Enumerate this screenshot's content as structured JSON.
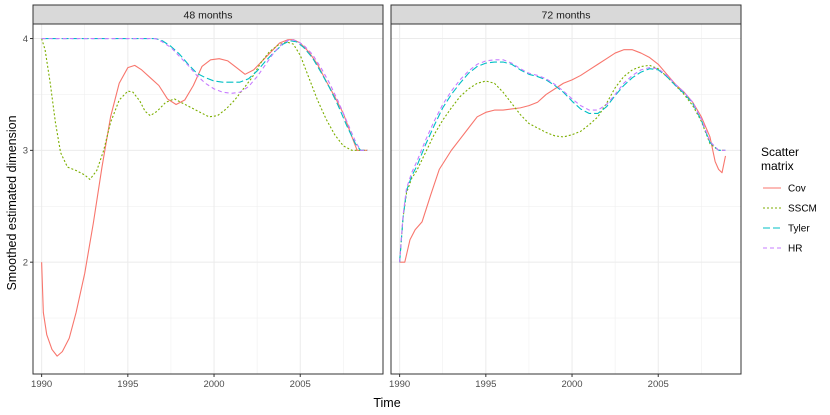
{
  "chart_data": {
    "type": "line",
    "xlabel": "Time",
    "ylabel": "Smoothed estimated dimension",
    "xticks": [
      1990,
      1995,
      2000,
      2005
    ],
    "yticks": [
      2,
      3,
      4
    ],
    "xlim": [
      1989.5,
      2009.8
    ],
    "ylim": [
      1.0,
      4.13
    ],
    "grid": true,
    "legend": {
      "title_lines": [
        "Scatter",
        "matrix"
      ],
      "position": "right"
    },
    "series_styles": [
      {
        "name": "Cov",
        "color": "#F8766D",
        "dash": ""
      },
      {
        "name": "SSCM",
        "color": "#7CAE00",
        "dash": "2,2"
      },
      {
        "name": "Tyler",
        "color": "#00BFC4",
        "dash": "7,3"
      },
      {
        "name": "HR",
        "color": "#C77CFF",
        "dash": "4,3"
      }
    ],
    "panels": [
      {
        "strip": "48 months",
        "series": [
          {
            "name": "Cov",
            "x": [
              1990.0,
              1990.1,
              1990.3,
              1990.6,
              1990.9,
              1991.2,
              1991.6,
              1992.0,
              1992.5,
              1993.0,
              1993.5,
              1994.0,
              1994.5,
              1995.0,
              1995.4,
              1995.8,
              1996.3,
              1996.8,
              1997.3,
              1997.8,
              1998.3,
              1998.8,
              1999.3,
              1999.8,
              2000.3,
              2000.8,
              2001.3,
              2001.8,
              2002.3,
              2002.8,
              2003.3,
              2003.8,
              2004.3,
              2004.6,
              2005.0,
              2005.5,
              2006.0,
              2006.5,
              2007.0,
              2007.5,
              2008.0,
              2008.3,
              2008.5,
              2008.9
            ],
            "y": [
              2.0,
              1.55,
              1.35,
              1.22,
              1.16,
              1.2,
              1.32,
              1.55,
              1.9,
              2.35,
              2.85,
              3.3,
              3.6,
              3.74,
              3.76,
              3.72,
              3.65,
              3.58,
              3.46,
              3.41,
              3.45,
              3.58,
              3.75,
              3.81,
              3.82,
              3.8,
              3.74,
              3.68,
              3.72,
              3.8,
              3.88,
              3.96,
              3.99,
              3.99,
              3.96,
              3.88,
              3.77,
              3.62,
              3.48,
              3.33,
              3.12,
              3.0,
              3.0,
              3.0
            ]
          },
          {
            "name": "SSCM",
            "x": [
              1990.0,
              1990.2,
              1990.5,
              1990.8,
              1991.1,
              1991.5,
              1992.0,
              1992.5,
              1992.8,
              1993.2,
              1993.6,
              1994.0,
              1994.5,
              1995.0,
              1995.3,
              1995.7,
              1996.0,
              1996.3,
              1996.7,
              1997.2,
              1997.7,
              1998.2,
              1998.7,
              1999.2,
              1999.7,
              2000.2,
              2000.7,
              2001.2,
              2001.7,
              2002.2,
              2002.7,
              2003.2,
              2003.7,
              2004.2,
              2004.6,
              2005.0,
              2005.5,
              2006.0,
              2006.5,
              2007.0,
              2007.5,
              2008.0,
              2008.3,
              2008.9
            ],
            "y": [
              4.0,
              3.9,
              3.6,
              3.25,
              2.98,
              2.85,
              2.82,
              2.78,
              2.74,
              2.82,
              3.0,
              3.25,
              3.45,
              3.53,
              3.52,
              3.44,
              3.35,
              3.31,
              3.35,
              3.43,
              3.46,
              3.42,
              3.38,
              3.34,
              3.3,
              3.31,
              3.37,
              3.45,
              3.55,
              3.65,
              3.78,
              3.88,
              3.94,
              3.97,
              3.95,
              3.85,
              3.65,
              3.45,
              3.28,
              3.14,
              3.04,
              3.0,
              3.0,
              3.0
            ]
          },
          {
            "name": "Tyler",
            "x": [
              1990.0,
              1991.0,
              1992.0,
              1993.0,
              1994.0,
              1995.0,
              1996.0,
              1996.6,
              1997.0,
              1997.5,
              1998.0,
              1998.5,
              1999.0,
              1999.5,
              2000.0,
              2000.5,
              2001.0,
              2001.5,
              2002.0,
              2002.5,
              2003.0,
              2003.5,
              2004.0,
              2004.4,
              2004.8,
              2005.2,
              2005.7,
              2006.2,
              2006.7,
              2007.2,
              2007.7,
              2008.2,
              2008.5,
              2008.9
            ],
            "y": [
              4.0,
              4.0,
              4.0,
              4.0,
              4.0,
              4.0,
              4.0,
              4.0,
              3.98,
              3.93,
              3.86,
              3.77,
              3.69,
              3.65,
              3.62,
              3.61,
              3.61,
              3.61,
              3.64,
              3.71,
              3.8,
              3.88,
              3.95,
              3.98,
              3.97,
              3.92,
              3.83,
              3.7,
              3.56,
              3.4,
              3.22,
              3.06,
              3.0,
              3.0
            ]
          },
          {
            "name": "HR",
            "x": [
              1990.0,
              1991.0,
              1992.0,
              1993.0,
              1994.0,
              1995.0,
              1996.0,
              1996.6,
              1997.0,
              1997.5,
              1998.0,
              1998.5,
              1999.0,
              1999.5,
              2000.0,
              2000.5,
              2001.0,
              2001.5,
              2002.0,
              2002.5,
              2003.0,
              2003.5,
              2004.0,
              2004.4,
              2004.8,
              2005.2,
              2005.7,
              2006.2,
              2006.7,
              2007.2,
              2007.7,
              2008.2,
              2008.5,
              2008.9
            ],
            "y": [
              4.0,
              4.0,
              4.0,
              4.0,
              4.0,
              4.0,
              4.0,
              4.0,
              3.97,
              3.92,
              3.84,
              3.76,
              3.67,
              3.6,
              3.55,
              3.52,
              3.51,
              3.52,
              3.57,
              3.66,
              3.77,
              3.88,
              3.96,
              3.99,
              3.98,
              3.94,
              3.86,
              3.74,
              3.6,
              3.44,
              3.26,
              3.08,
              3.0,
              3.0
            ]
          }
        ]
      },
      {
        "strip": "72 months",
        "series": [
          {
            "name": "Cov",
            "x": [
              1990.0,
              1990.3,
              1990.6,
              1990.9,
              1991.3,
              1991.8,
              1992.3,
              1993.0,
              1993.5,
              1994.0,
              1994.5,
              1995.0,
              1995.5,
              1996.0,
              1996.5,
              1997.0,
              1997.5,
              1998.0,
              1998.5,
              1999.0,
              1999.5,
              2000.0,
              2000.5,
              2001.0,
              2001.5,
              2002.0,
              2002.5,
              2003.0,
              2003.5,
              2004.0,
              2004.5,
              2005.0,
              2005.5,
              2006.0,
              2006.5,
              2007.0,
              2007.5,
              2008.0,
              2008.3,
              2008.5,
              2008.7,
              2008.9
            ],
            "y": [
              2.0,
              2.0,
              2.2,
              2.29,
              2.36,
              2.6,
              2.83,
              3.0,
              3.1,
              3.2,
              3.3,
              3.34,
              3.36,
              3.36,
              3.37,
              3.38,
              3.4,
              3.43,
              3.5,
              3.55,
              3.6,
              3.63,
              3.67,
              3.72,
              3.77,
              3.82,
              3.87,
              3.9,
              3.9,
              3.87,
              3.83,
              3.77,
              3.68,
              3.59,
              3.52,
              3.43,
              3.3,
              3.12,
              2.9,
              2.83,
              2.8,
              2.95
            ]
          },
          {
            "name": "SSCM",
            "x": [
              1990.0,
              1990.2,
              1990.4,
              1990.7,
              1991.0,
              1991.5,
              1992.0,
              1992.5,
              1993.0,
              1993.5,
              1994.0,
              1994.5,
              1995.0,
              1995.5,
              1996.0,
              1996.5,
              1997.0,
              1997.5,
              1998.0,
              1998.5,
              1999.0,
              1999.5,
              2000.0,
              2000.5,
              2001.0,
              2001.5,
              2002.0,
              2002.5,
              2003.0,
              2003.5,
              2004.0,
              2004.5,
              2005.0,
              2005.5,
              2006.0,
              2006.5,
              2007.0,
              2007.5,
              2008.0,
              2008.5,
              2008.9
            ],
            "y": [
              2.0,
              2.4,
              2.62,
              2.75,
              2.82,
              2.98,
              3.14,
              3.27,
              3.38,
              3.48,
              3.55,
              3.6,
              3.62,
              3.6,
              3.52,
              3.42,
              3.32,
              3.24,
              3.2,
              3.16,
              3.13,
              3.12,
              3.14,
              3.17,
              3.23,
              3.3,
              3.42,
              3.56,
              3.66,
              3.72,
              3.75,
              3.76,
              3.73,
              3.66,
              3.58,
              3.5,
              3.4,
              3.26,
              3.06,
              3.0,
              3.0
            ]
          },
          {
            "name": "Tyler",
            "x": [
              1990.0,
              1990.2,
              1990.4,
              1990.7,
              1991.0,
              1991.5,
              1992.0,
              1992.5,
              1993.0,
              1993.5,
              1994.0,
              1994.5,
              1995.0,
              1995.5,
              1996.0,
              1996.5,
              1997.0,
              1997.5,
              1998.0,
              1998.5,
              1999.0,
              1999.5,
              2000.0,
              2000.5,
              2001.0,
              2001.5,
              2002.0,
              2002.5,
              2003.0,
              2003.5,
              2004.0,
              2004.5,
              2005.0,
              2005.5,
              2006.0,
              2006.5,
              2007.0,
              2007.5,
              2008.0,
              2008.5,
              2008.9
            ],
            "y": [
              2.0,
              2.4,
              2.64,
              2.77,
              2.86,
              3.05,
              3.22,
              3.38,
              3.5,
              3.6,
              3.69,
              3.75,
              3.78,
              3.79,
              3.79,
              3.77,
              3.72,
              3.68,
              3.66,
              3.63,
              3.58,
              3.52,
              3.44,
              3.37,
              3.33,
              3.33,
              3.39,
              3.49,
              3.58,
              3.65,
              3.7,
              3.73,
              3.72,
              3.66,
              3.58,
              3.51,
              3.42,
              3.27,
              3.07,
              3.0,
              3.0
            ]
          },
          {
            "name": "HR",
            "x": [
              1990.0,
              1990.2,
              1990.4,
              1990.7,
              1991.0,
              1991.5,
              1992.0,
              1992.5,
              1993.0,
              1993.5,
              1994.0,
              1994.5,
              1995.0,
              1995.5,
              1996.0,
              1996.5,
              1997.0,
              1997.5,
              1998.0,
              1998.5,
              1999.0,
              1999.5,
              2000.0,
              2000.5,
              2001.0,
              2001.5,
              2002.0,
              2002.5,
              2003.0,
              2003.5,
              2004.0,
              2004.5,
              2005.0,
              2005.5,
              2006.0,
              2006.5,
              2007.0,
              2007.5,
              2008.0,
              2008.5,
              2008.9
            ],
            "y": [
              2.0,
              2.42,
              2.66,
              2.8,
              2.9,
              3.09,
              3.26,
              3.41,
              3.53,
              3.63,
              3.71,
              3.77,
              3.8,
              3.81,
              3.81,
              3.78,
              3.73,
              3.69,
              3.67,
              3.64,
              3.59,
              3.53,
              3.46,
              3.4,
              3.36,
              3.36,
              3.41,
              3.5,
              3.6,
              3.67,
              3.72,
              3.74,
              3.73,
              3.67,
              3.59,
              3.52,
              3.43,
              3.28,
              3.08,
              3.0,
              3.0
            ]
          }
        ]
      }
    ]
  }
}
